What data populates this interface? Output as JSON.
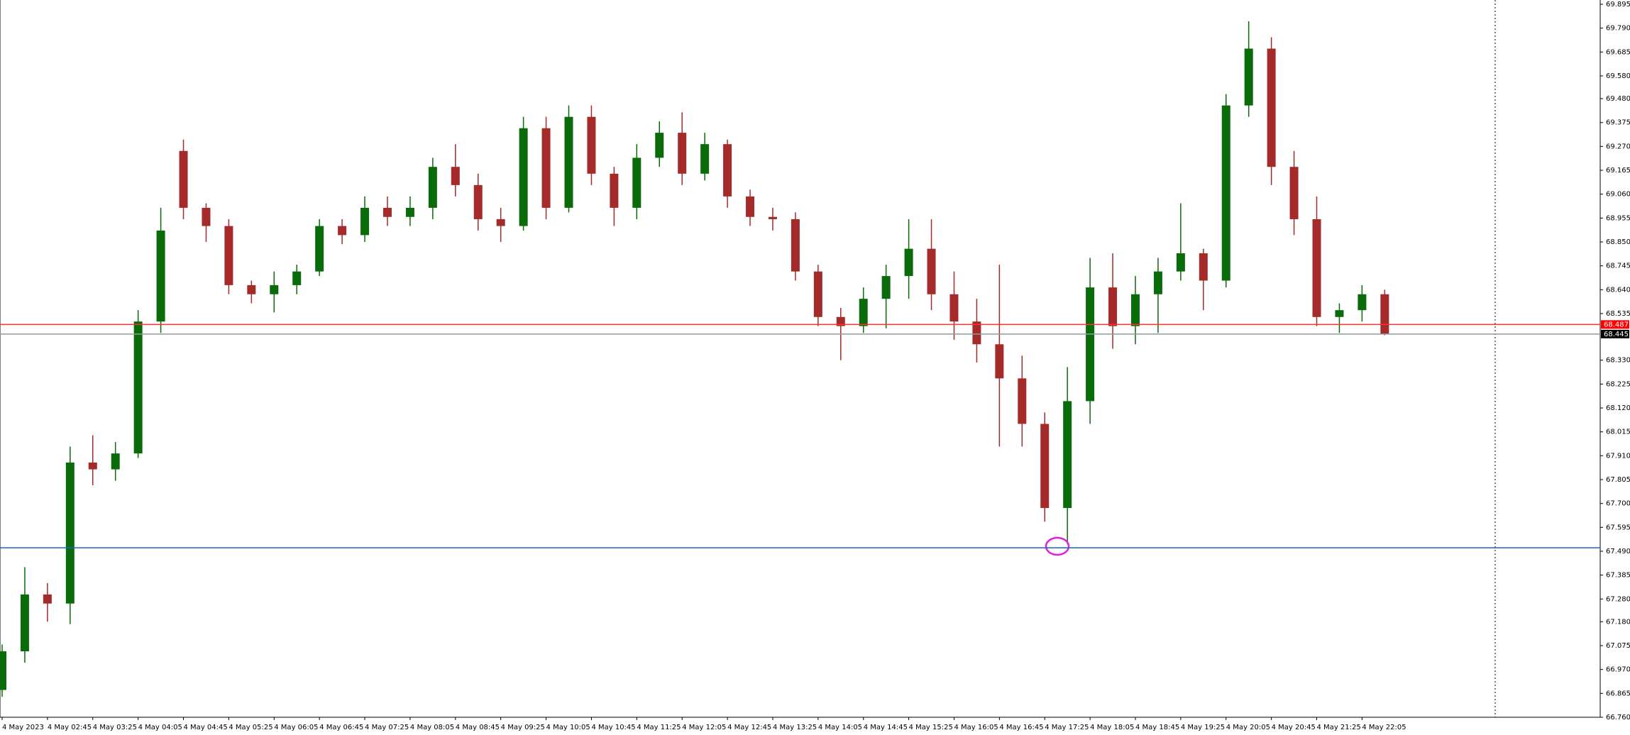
{
  "chart_data": {
    "type": "candlestick",
    "categories": [
      "4 May 2023",
      null,
      "4 May 02:45",
      null,
      "4 May 03:25",
      null,
      "4 May 04:05",
      null,
      "4 May 04:45",
      null,
      "4 May 05:25",
      null,
      "4 May 06:05",
      null,
      "4 May 06:45",
      null,
      "4 May 07:25",
      null,
      "4 May 08:05",
      null,
      "4 May 08:45",
      null,
      "4 May 09:25",
      null,
      "4 May 10:05",
      null,
      "4 May 10:45",
      null,
      "4 May 11:25",
      null,
      "4 May 12:05",
      null,
      "4 May 12:45",
      null,
      "4 May 13:25",
      null,
      "4 May 14:05",
      null,
      "4 May 14:45",
      null,
      "4 May 15:25",
      null,
      "4 May 16:05",
      null,
      "4 May 16:45",
      null,
      "4 May 17:25",
      null,
      "4 May 18:05",
      null,
      "4 May 18:45",
      null,
      "4 May 19:25",
      null,
      "4 May 20:05",
      null,
      "4 May 20:45",
      null,
      "4 May 21:25",
      null,
      "4 May 22:05",
      null
    ],
    "open": [
      66.88,
      67.05,
      67.3,
      67.26,
      67.88,
      67.85,
      67.92,
      68.5,
      69.25,
      69.0,
      68.92,
      68.66,
      68.62,
      68.66,
      68.72,
      68.92,
      68.88,
      69.0,
      68.96,
      69.0,
      69.18,
      69.1,
      68.95,
      68.92,
      69.35,
      69.0,
      69.4,
      69.15,
      69.0,
      69.22,
      69.33,
      69.15,
      69.28,
      69.05,
      68.96,
      68.95,
      68.72,
      68.52,
      68.48,
      68.6,
      68.7,
      68.82,
      68.62,
      68.5,
      68.4,
      68.25,
      68.05,
      67.68,
      68.15,
      68.65,
      68.48,
      68.62,
      68.72,
      68.8,
      68.68,
      69.45,
      69.7,
      69.18,
      68.95,
      68.52,
      68.55,
      68.62
    ],
    "high": [
      67.08,
      67.42,
      67.35,
      67.95,
      68.0,
      67.97,
      68.55,
      69.0,
      69.3,
      69.02,
      68.95,
      68.68,
      68.72,
      68.75,
      68.95,
      68.95,
      69.05,
      69.05,
      69.05,
      69.22,
      69.28,
      69.15,
      69.0,
      69.4,
      69.4,
      69.45,
      69.45,
      69.18,
      69.28,
      69.38,
      69.42,
      69.33,
      69.3,
      69.08,
      69.0,
      68.98,
      68.75,
      68.56,
      68.65,
      68.75,
      68.95,
      68.95,
      68.72,
      68.6,
      68.75,
      68.35,
      68.1,
      68.3,
      68.78,
      68.8,
      68.7,
      68.78,
      69.02,
      68.82,
      69.5,
      69.82,
      69.75,
      69.25,
      69.05,
      68.58,
      68.66,
      68.64
    ],
    "low": [
      66.85,
      67.0,
      67.18,
      67.17,
      67.78,
      67.8,
      67.9,
      68.45,
      68.95,
      68.85,
      68.62,
      68.58,
      68.54,
      68.62,
      68.7,
      68.84,
      68.85,
      68.92,
      68.92,
      68.95,
      69.05,
      68.9,
      68.85,
      68.9,
      68.95,
      68.98,
      69.1,
      68.92,
      68.95,
      69.18,
      69.1,
      69.12,
      69.0,
      68.92,
      68.9,
      68.68,
      68.48,
      68.33,
      68.45,
      68.47,
      68.6,
      68.55,
      68.42,
      68.32,
      67.95,
      67.95,
      67.62,
      67.52,
      68.05,
      68.38,
      68.4,
      68.45,
      68.68,
      68.55,
      68.65,
      69.4,
      69.1,
      68.88,
      68.48,
      68.45,
      68.5,
      68.44
    ],
    "close": [
      67.05,
      67.3,
      67.26,
      67.88,
      67.85,
      67.92,
      68.5,
      68.9,
      69.0,
      68.92,
      68.66,
      68.62,
      68.66,
      68.72,
      68.92,
      68.88,
      69.0,
      68.96,
      69.0,
      69.18,
      69.1,
      68.95,
      68.92,
      69.35,
      69.0,
      69.4,
      69.15,
      69.0,
      69.22,
      69.33,
      69.15,
      69.28,
      69.05,
      68.96,
      68.95,
      68.72,
      68.52,
      68.48,
      68.6,
      68.7,
      68.82,
      68.62,
      68.5,
      68.4,
      68.25,
      68.05,
      67.68,
      68.15,
      68.65,
      68.48,
      68.62,
      68.72,
      68.8,
      68.68,
      69.45,
      69.7,
      69.18,
      68.95,
      68.52,
      68.55,
      68.62,
      68.445
    ],
    "up_color": "#0a6b0a",
    "down_color": "#a52a2a",
    "ylim": [
      66.76,
      69.895
    ],
    "yticks": [
      69.895,
      {
        "value": 69.79,
        "label": "69.790"
      },
      69.685,
      {
        "value": 69.58,
        "label": "69.580"
      },
      {
        "value": 69.48,
        "label": "69.480"
      },
      69.375,
      {
        "value": 69.27,
        "label": "69.270"
      },
      69.165,
      {
        "value": 69.06,
        "label": "69.060"
      },
      68.955,
      {
        "value": 68.85,
        "label": "68.850"
      },
      68.745,
      {
        "value": 68.64,
        "label": "68.640"
      },
      68.535,
      {
        "value": 68.33,
        "label": "68.330"
      },
      68.225,
      {
        "value": 68.12,
        "label": "68.120"
      },
      68.015,
      {
        "value": 67.91,
        "label": "67.910"
      },
      67.805,
      {
        "value": 67.7,
        "label": "67.700"
      },
      67.595,
      {
        "value": 67.49,
        "label": "67.490"
      },
      67.385,
      {
        "value": 67.28,
        "label": "67.280"
      },
      {
        "value": 67.18,
        "label": "67.180"
      },
      67.075,
      {
        "value": 66.97,
        "label": "66.970"
      },
      66.865,
      {
        "value": 66.76,
        "label": "66.760"
      }
    ],
    "price_lines": [
      {
        "value": 68.487,
        "color": "#ff3030",
        "label_bg": "#ff0000"
      },
      {
        "value": 68.445,
        "color": "#8c9c9c",
        "label_bg": "#000000"
      },
      {
        "value": 67.505,
        "color": "#1f5fbf"
      }
    ]
  }
}
